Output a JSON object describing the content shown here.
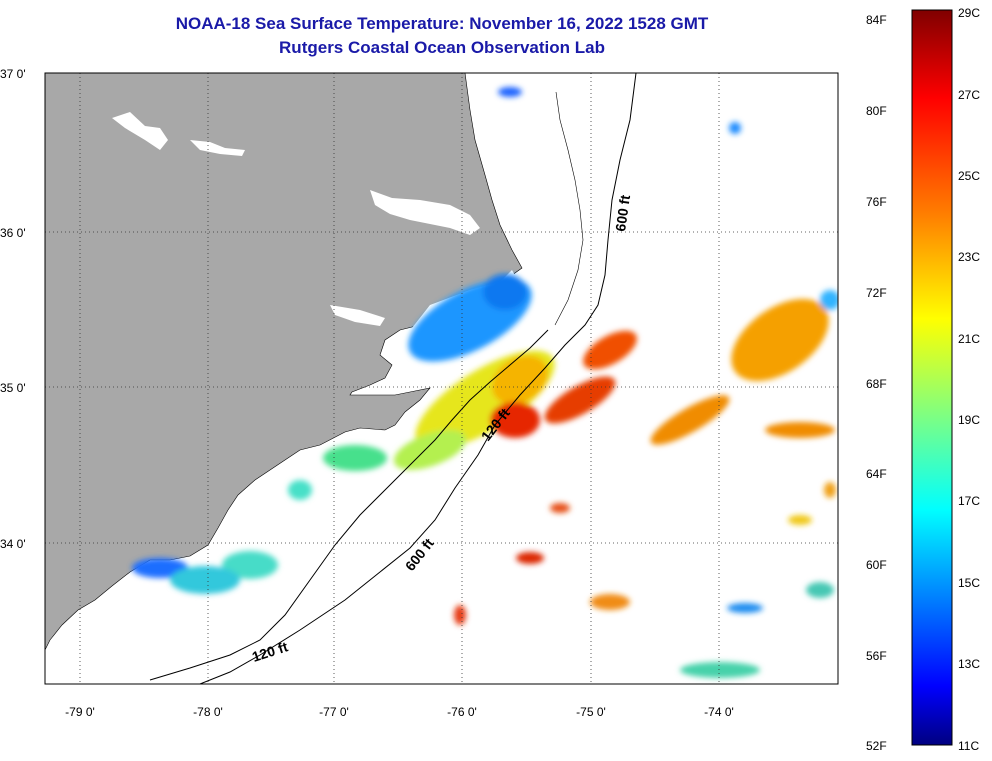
{
  "title": "NOAA-18 Sea Surface Temperature:  November 16, 2022 1528 GMT",
  "subtitle": "Rutgers Coastal Ocean Observation Lab",
  "map": {
    "lat_labels": [
      "37 0'",
      "36 0'",
      "35 0'",
      "34 0'"
    ],
    "lon_labels": [
      "-79 0'",
      "-78 0'",
      "-77 0'",
      "-76 0'",
      "-75 0'",
      "-74 0'"
    ],
    "contour_labels": [
      "600 ft",
      "120 ft",
      "600 ft",
      "120 ft"
    ],
    "colors": {
      "land": "#a8a8a8",
      "ocean_nodata": "#ffffff",
      "grid": "#000000"
    }
  },
  "colorbar": {
    "fahrenheit_labels": [
      "84F",
      "80F",
      "76F",
      "72F",
      "68F",
      "64F",
      "60F",
      "56F",
      "52F"
    ],
    "celsius_labels": [
      "29C",
      "27C",
      "25C",
      "23C",
      "21C",
      "19C",
      "17C",
      "15C",
      "13C",
      "11C"
    ],
    "colors_top_to_bottom": [
      "#800000",
      "#ff0000",
      "#ff8000",
      "#ffff00",
      "#80ff80",
      "#00ffff",
      "#0080ff",
      "#0000ff",
      "#000080"
    ]
  }
}
